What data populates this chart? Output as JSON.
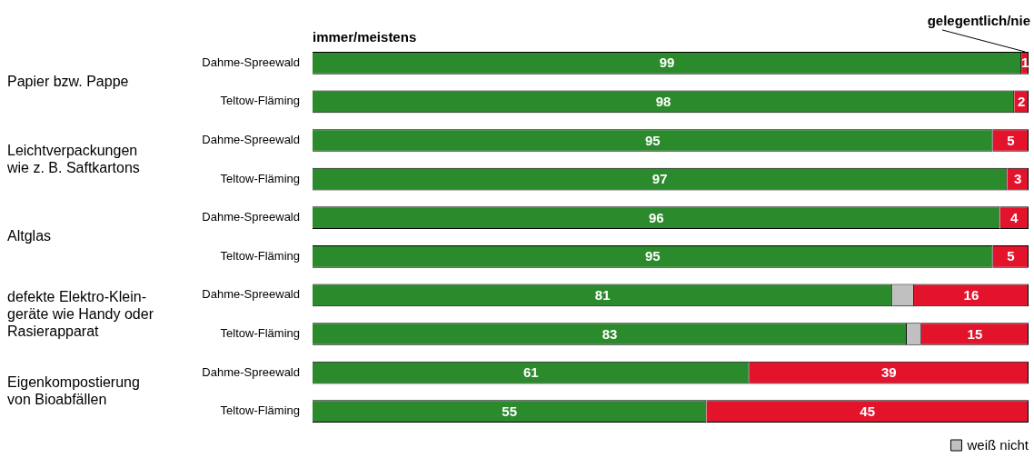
{
  "chart_data": {
    "type": "bar",
    "orientation": "horizontal",
    "stacked": true,
    "categories": [
      "Dahme-Spreewald",
      "Teltow-Fläming",
      "Dahme-Spreewald",
      "Teltow-Fläming",
      "Dahme-Spreewald",
      "Teltow-Fläming",
      "Dahme-Spreewald",
      "Teltow-Fläming",
      "Dahme-Spreewald",
      "Teltow-Fläming"
    ],
    "series": [
      {
        "name": "immer/meistens",
        "color": "#2b8a2b",
        "values": [
          99,
          98,
          95,
          97,
          96,
          95,
          81,
          83,
          61,
          55
        ],
        "value_labels": [
          "99",
          "98",
          "95",
          "97",
          "96",
          "95",
          "81",
          "83",
          "61",
          "55"
        ]
      },
      {
        "name": "weiß nicht",
        "color": "#c0c0c0",
        "values": [
          null,
          null,
          null,
          null,
          null,
          null,
          3,
          2,
          null,
          null
        ],
        "value_labels": [
          null,
          null,
          null,
          null,
          null,
          null,
          null,
          null,
          null,
          null
        ]
      },
      {
        "name": "gelegentlich/nie",
        "color": "#e3132c",
        "values": [
          1,
          2,
          5,
          3,
          4,
          5,
          16,
          15,
          39,
          45
        ],
        "value_labels": [
          "1",
          "2",
          "5",
          "3",
          "4",
          "5",
          "16",
          "15",
          "39",
          "45"
        ]
      }
    ],
    "annotations": [
      "Papier bzw. Pappe",
      "Leichtverpackungen\nwie z. B. Saftkartons",
      "Altglas",
      "defekte Elektro-Klein-\ngeräte wie Handy oder\nRasierapparat",
      "Eigenkompostierung\nvon Bioabfällen"
    ],
    "xlim": [
      0,
      100
    ],
    "tick_labels": "y",
    "legend": "bottom right"
  }
}
